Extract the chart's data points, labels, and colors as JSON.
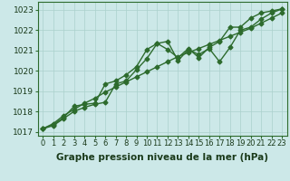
{
  "xlabel": "Graphe pression niveau de la mer (hPa)",
  "x_values": [
    0,
    1,
    2,
    3,
    4,
    5,
    6,
    7,
    8,
    9,
    10,
    11,
    12,
    13,
    14,
    15,
    16,
    17,
    18,
    19,
    20,
    21,
    22,
    23
  ],
  "line1": [
    1017.15,
    1017.3,
    1017.65,
    1018.0,
    1018.2,
    1018.35,
    1018.45,
    1019.35,
    1019.5,
    1020.05,
    1020.6,
    1021.35,
    1021.45,
    1020.5,
    1021.05,
    1020.8,
    1021.1,
    1020.45,
    1021.15,
    1022.0,
    1022.15,
    1022.55,
    1022.85,
    1023.05
  ],
  "line2": [
    1017.15,
    1017.35,
    1017.7,
    1018.25,
    1018.35,
    1018.4,
    1019.35,
    1019.5,
    1019.8,
    1020.2,
    1021.05,
    1021.35,
    1021.05,
    1020.65,
    1021.1,
    1020.65,
    1021.15,
    1021.45,
    1022.15,
    1022.15,
    1022.6,
    1022.85,
    1022.95,
    1023.05
  ],
  "line3": [
    1017.15,
    1017.4,
    1017.8,
    1018.1,
    1018.4,
    1018.65,
    1018.95,
    1019.2,
    1019.45,
    1019.7,
    1019.95,
    1020.2,
    1020.45,
    1020.7,
    1020.9,
    1021.1,
    1021.3,
    1021.5,
    1021.7,
    1021.9,
    1022.1,
    1022.35,
    1022.6,
    1022.85
  ],
  "ylim": [
    1016.8,
    1023.4
  ],
  "yticks": [
    1017,
    1018,
    1019,
    1020,
    1021,
    1022,
    1023
  ],
  "bg_color": "#cce8e8",
  "grid_color": "#aad0cc",
  "line_color": "#2d6b2d",
  "line3_color": "#3a7a3a",
  "marker": "D",
  "marker_size": 2.5,
  "line_width": 1.0,
  "xlabel_fontsize": 7.5,
  "tick_fontsize": 6.5,
  "ytick_fontsize": 6.5
}
